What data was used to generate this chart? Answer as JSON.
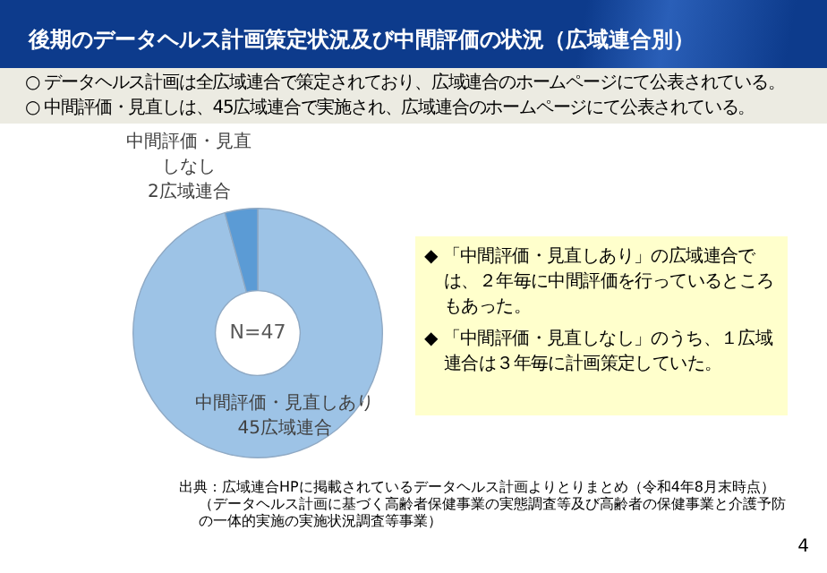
{
  "chart_data": {
    "type": "donut",
    "title": "後期のデータヘルス計画策定状況及び中間評価の状況（広域連合別）",
    "categories": [
      "中間評価・見直しあり",
      "中間評価・見直しなし"
    ],
    "values": [
      45,
      2
    ],
    "colors": [
      "#9dc3e6",
      "#5b9bd5"
    ],
    "value_labels": [
      "45広域連合",
      "2広域連合"
    ],
    "legend": false,
    "annotations": [
      "N=47",
      "○ データヘルス計画は全広域連合で策定されており、広域連合のホームページにて公表されている。",
      "○ 中間評価・見直しは、45広域連合で実施され、広域連合のホームページにて公表されている。",
      "◆ 「中間評価・見直しあり」の広域連合では、２年毎に中間評価を行っているところもあった。",
      "◆ 「中間評価・見直しなし」のうち、１広域連合は３年毎に計画策定していた。",
      "出典：広域連合HPに掲載されているデータヘルス計画よりとりまとめ（令和4年8月末時点）",
      "（データヘルス計画に基づく高齢者保健事業の実態調査等及び高齢者の保健事業と介護予防の一体的実施の実施状況調査等事業）",
      "4"
    ]
  }
}
